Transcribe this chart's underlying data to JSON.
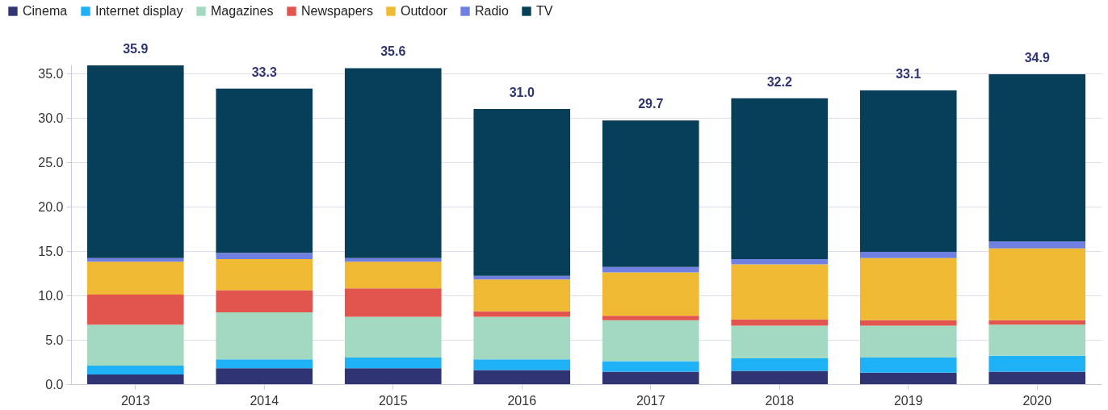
{
  "chart_data": {
    "type": "bar",
    "stacked": true,
    "categories": [
      "2013",
      "2014",
      "2015",
      "2016",
      "2017",
      "2018",
      "2019",
      "2020"
    ],
    "series": [
      {
        "name": "Cinema",
        "color": "#2e3572",
        "values": [
          1.1,
          1.8,
          1.8,
          1.6,
          1.4,
          1.5,
          1.3,
          1.4
        ]
      },
      {
        "name": "Internet display",
        "color": "#1fb1f5",
        "values": [
          1.0,
          1.0,
          1.2,
          1.2,
          1.2,
          1.4,
          1.7,
          1.8
        ]
      },
      {
        "name": "Magazines",
        "color": "#a3d8c1",
        "values": [
          4.6,
          5.3,
          4.6,
          4.8,
          4.6,
          3.7,
          3.6,
          3.5
        ]
      },
      {
        "name": "Newspapers",
        "color": "#e2554f",
        "values": [
          3.4,
          2.5,
          3.2,
          0.6,
          0.5,
          0.7,
          0.6,
          0.5
        ]
      },
      {
        "name": "Outdoor",
        "color": "#efb934",
        "values": [
          3.7,
          3.5,
          3.0,
          3.6,
          4.9,
          6.2,
          7.0,
          8.1
        ]
      },
      {
        "name": "Radio",
        "color": "#6f80e0",
        "values": [
          0.4,
          0.7,
          0.4,
          0.4,
          0.6,
          0.6,
          0.7,
          0.8
        ]
      },
      {
        "name": "TV",
        "color": "#083f58",
        "values": [
          21.7,
          18.5,
          21.4,
          18.8,
          16.5,
          18.1,
          18.2,
          18.8
        ]
      }
    ],
    "totals": [
      "35.9",
      "33.3",
      "35.6",
      "31.0",
      "29.7",
      "32.2",
      "33.1",
      "34.9"
    ],
    "ylim": [
      0,
      36
    ],
    "yticks": [
      {
        "value": 0,
        "label": "0.0"
      },
      {
        "value": 5,
        "label": "5.0"
      },
      {
        "value": 10,
        "label": "10.0"
      },
      {
        "value": 15,
        "label": "15.0"
      },
      {
        "value": 20,
        "label": "20.0"
      },
      {
        "value": 25,
        "label": "25.0"
      },
      {
        "value": 30,
        "label": "30.0"
      },
      {
        "value": 35,
        "label": "35.0"
      }
    ],
    "grid": "y",
    "legend": "top left"
  }
}
